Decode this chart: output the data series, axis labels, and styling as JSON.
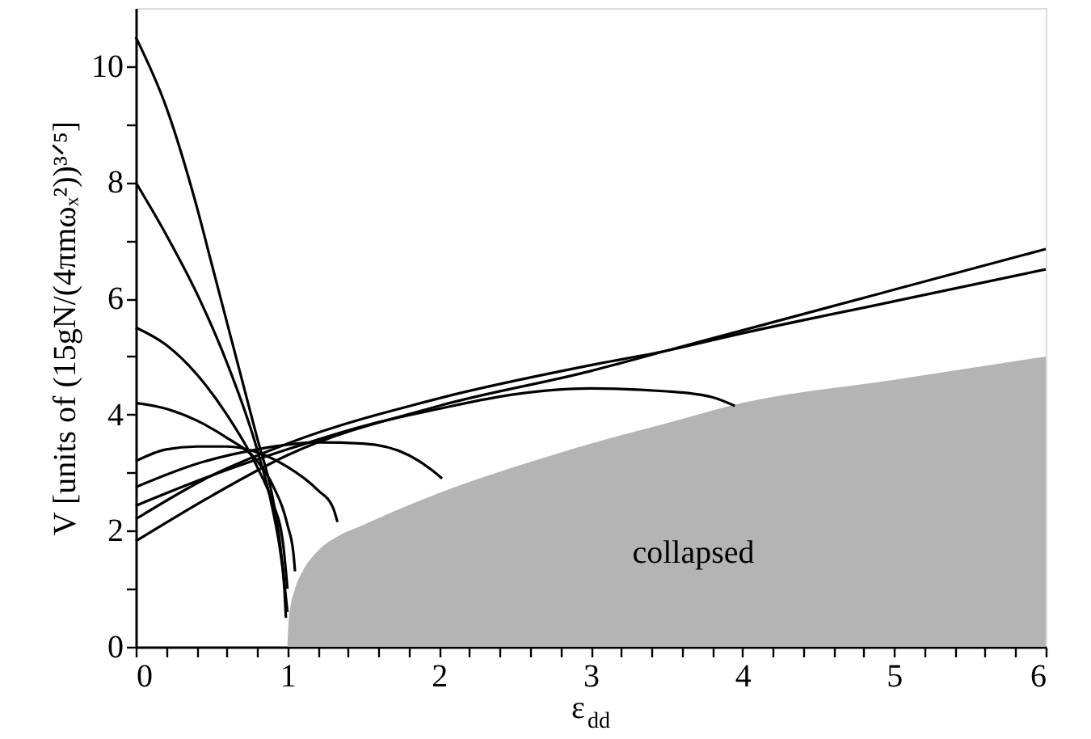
{
  "chart_data": {
    "type": "line",
    "xlabel": "ε$_{dd}$",
    "ylabel": "V [units of (15gN/(4πmωₓ²))³ᐟ⁵]",
    "xlim": [
      0,
      6
    ],
    "ylim": [
      0,
      11
    ],
    "xticks": [
      0,
      {
        "value": 0.2,
        "label": null
      },
      {
        "value": 0.4,
        "label": null
      },
      {
        "value": 0.6,
        "label": null
      },
      {
        "value": 0.8,
        "label": null
      },
      1,
      {
        "value": 1.2,
        "label": null
      },
      {
        "value": 1.4,
        "label": null
      },
      {
        "value": 1.6,
        "label": null
      },
      {
        "value": 1.8,
        "label": null
      },
      2,
      {
        "value": 2.2,
        "label": null
      },
      {
        "value": 2.4,
        "label": null
      },
      {
        "value": 2.6,
        "label": null
      },
      {
        "value": 2.8,
        "label": null
      },
      3,
      {
        "value": 3.2,
        "label": null
      },
      {
        "value": 3.4,
        "label": null
      },
      {
        "value": 3.6,
        "label": null
      },
      {
        "value": 3.8,
        "label": null
      },
      4,
      {
        "value": 4.2,
        "label": null
      },
      {
        "value": 4.4,
        "label": null
      },
      {
        "value": 4.6,
        "label": null
      },
      {
        "value": 4.8,
        "label": null
      },
      5,
      {
        "value": 5.2,
        "label": null
      },
      {
        "value": 5.4,
        "label": null
      },
      {
        "value": 5.6,
        "label": null
      },
      {
        "value": 5.8,
        "label": null
      },
      6
    ],
    "yticks": [
      0,
      {
        "value": 1,
        "label": null
      },
      2,
      {
        "value": 3,
        "label": null
      },
      4,
      {
        "value": 5,
        "label": null
      },
      6,
      {
        "value": 7,
        "label": null
      },
      8,
      {
        "value": 9,
        "label": null
      },
      10
    ],
    "grid": false,
    "marker": "none",
    "line_style": "solid",
    "series": [
      {
        "type": "area",
        "color": "#b4b4b4",
        "x": [
          1,
          1.01,
          1.05,
          1.1,
          1.2,
          1.33,
          1.5,
          2,
          2.5,
          3,
          3.5,
          4,
          5,
          6
        ],
        "values": [
          0,
          0.5,
          1.0,
          1.3,
          1.65,
          1.9,
          2.1,
          2.65,
          3.1,
          3.5,
          3.85,
          4.2,
          4.6,
          5.0
        ]
      },
      {
        "color": "#000000",
        "x": [
          0,
          0.2,
          0.4,
          0.5,
          0.6,
          0.8,
          0.9,
          0.95,
          0.98,
          0.99
        ],
        "values": [
          10.5,
          9.3,
          7.6,
          6.6,
          5.6,
          3.6,
          2.6,
          1.8,
          1.0,
          0.5
        ]
      },
      {
        "color": "#000000",
        "x": [
          0,
          0.2,
          0.4,
          0.6,
          0.8,
          0.9,
          0.95,
          0.98,
          1.0
        ],
        "values": [
          8.0,
          7.1,
          6.1,
          4.9,
          3.4,
          2.4,
          1.7,
          1.1,
          0.6
        ]
      },
      {
        "color": "#000000",
        "x": [
          0,
          0.2,
          0.4,
          0.6,
          0.8,
          0.9,
          0.97,
          1.0
        ],
        "values": [
          5.5,
          5.2,
          4.7,
          4.0,
          3.1,
          2.5,
          1.8,
          1.0
        ]
      },
      {
        "color": "#000000",
        "x": [
          0,
          0.2,
          0.4,
          0.6,
          0.8,
          0.9,
          1.0,
          1.04,
          1.05
        ],
        "values": [
          4.2,
          4.1,
          3.9,
          3.6,
          3.2,
          2.8,
          2.1,
          1.6,
          1.3
        ]
      },
      {
        "color": "#000000",
        "x": [
          0,
          0.2,
          0.4,
          0.6,
          0.8,
          1.0,
          1.2,
          1.3,
          1.33
        ],
        "values": [
          3.2,
          3.4,
          3.45,
          3.45,
          3.35,
          3.1,
          2.7,
          2.4,
          2.15
        ]
      },
      {
        "color": "#000000",
        "x": [
          0,
          0.4,
          0.8,
          1.2,
          1.5,
          1.8,
          1.95,
          2.02
        ],
        "values": [
          2.75,
          3.15,
          3.4,
          3.52,
          3.5,
          3.3,
          3.05,
          2.9
        ]
      },
      {
        "color": "#000000",
        "x": [
          0,
          0.5,
          1,
          1.5,
          2,
          2.5,
          3,
          3.5,
          3.8,
          3.95
        ],
        "values": [
          2.43,
          2.95,
          3.4,
          3.8,
          4.1,
          4.35,
          4.45,
          4.4,
          4.3,
          4.15
        ]
      },
      {
        "color": "#000000",
        "x": [
          0,
          0.5,
          1,
          2,
          3,
          3.5,
          4,
          5,
          6
        ],
        "values": [
          2.2,
          2.95,
          3.5,
          4.28,
          4.85,
          5.1,
          5.4,
          5.95,
          6.5
        ]
      },
      {
        "color": "#000000",
        "x": [
          0,
          0.5,
          1,
          2,
          3,
          3.5,
          4,
          5,
          6
        ],
        "values": [
          1.82,
          2.6,
          3.3,
          4.15,
          4.75,
          5.1,
          5.45,
          6.15,
          6.85
        ]
      }
    ],
    "annotations": [
      "collapsed"
    ]
  }
}
